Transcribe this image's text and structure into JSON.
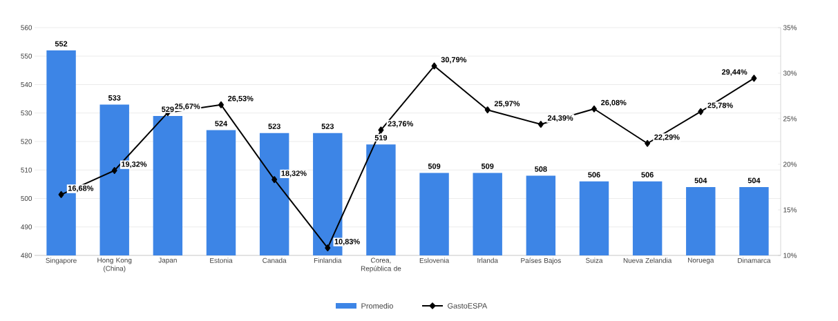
{
  "chart_data": {
    "type": "bar",
    "categories": [
      "Singapore",
      "Hong Kong (China)",
      "Japan",
      "Estonia",
      "Canada",
      "Finlandia",
      "Corea, República de",
      "Eslovenia",
      "Irlanda",
      "Países Bajos",
      "Suiza",
      "Nueva Zelandia",
      "Noruega",
      "Dinamarca"
    ],
    "series": [
      {
        "name": "Promedio",
        "color": "#3d85e6",
        "values": [
          552,
          533,
          529,
          524,
          523,
          523,
          519,
          509,
          509,
          508,
          506,
          506,
          504,
          504
        ],
        "value_labels": [
          "552",
          "533",
          "529",
          "524",
          "523",
          "523",
          "519",
          "509",
          "509",
          "508",
          "506",
          "506",
          "504",
          "504"
        ]
      },
      {
        "name": "GastoESPA",
        "type": "line",
        "axis": "y2",
        "color": "#000000",
        "marker": "diamond",
        "values": [
          16.68,
          19.32,
          25.67,
          26.53,
          18.32,
          10.83,
          23.76,
          30.79,
          25.97,
          24.39,
          26.08,
          22.29,
          25.78,
          29.44
        ],
        "value_labels": [
          "16,68%",
          "19,32%",
          "25,67%",
          "26,53%",
          "18,32%",
          "10,83%",
          "23,76%",
          "30,79%",
          "25,97%",
          "24,39%",
          "26,08%",
          "22,29%",
          "25,78%",
          "29,44%"
        ]
      }
    ],
    "ylim": [
      480,
      560
    ],
    "yticks": [
      480,
      490,
      500,
      510,
      520,
      530,
      540,
      550,
      560
    ],
    "y2lim": [
      10,
      35
    ],
    "y2ticks": [
      {
        "value": 10,
        "label": "10%"
      },
      {
        "value": 15,
        "label": "15%"
      },
      {
        "value": 20,
        "label": "20%"
      },
      {
        "value": 25,
        "label": "25%"
      },
      {
        "value": 30,
        "label": "30%"
      },
      {
        "value": 35,
        "label": "35%"
      }
    ],
    "grid": "y",
    "legend": "bottom"
  }
}
